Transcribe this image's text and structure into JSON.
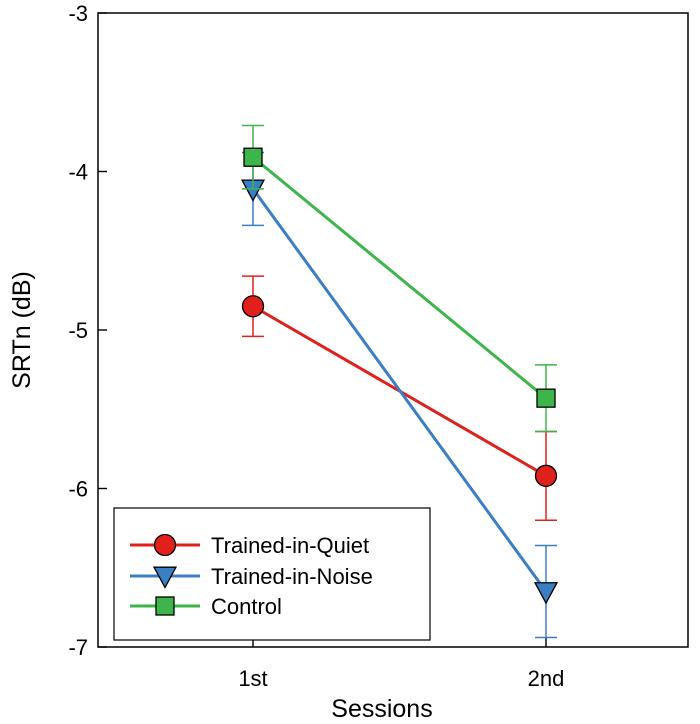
{
  "chart_data": {
    "type": "line",
    "xlabel": "Sessions",
    "ylabel": "SRTn (dB)",
    "categories": [
      "1st",
      "2nd"
    ],
    "ylim": [
      -7,
      -3
    ],
    "yticks": [
      "-3",
      "-4",
      "-5",
      "-6",
      "-7"
    ],
    "grid": false,
    "legend_position": "bottom-left",
    "series": [
      {
        "name": "Trained-in-Quiet",
        "marker": "circle",
        "color": "#e0201b",
        "values": [
          -4.85,
          -5.92
        ],
        "error": [
          0.19,
          0.28
        ]
      },
      {
        "name": "Trained-in-Noise",
        "marker": "triangle-down",
        "color": "#3a7fc4",
        "values": [
          -4.11,
          -6.65
        ],
        "error": [
          0.23,
          0.29
        ]
      },
      {
        "name": "Control",
        "marker": "square",
        "color": "#3db54a",
        "values": [
          -3.91,
          -5.43
        ],
        "error": [
          0.2,
          0.21
        ]
      }
    ]
  }
}
